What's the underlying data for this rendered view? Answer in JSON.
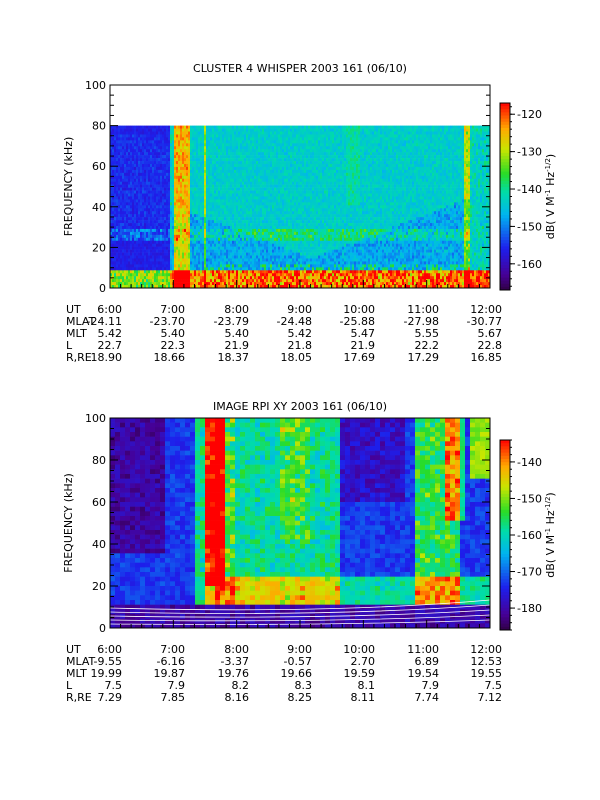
{
  "chart_data": [
    {
      "type": "heatmap",
      "title": "CLUSTER 4 WHISPER 2003 161 (06/10)",
      "ylabel": "FREQUENCY (kHz)",
      "ylim": [
        0,
        100
      ],
      "y_ticks": [
        "0",
        "20",
        "40",
        "60",
        "80",
        "100"
      ],
      "x_ticks": [
        "6:00",
        "7:00",
        "8:00",
        "9:00",
        "10:00",
        "11:00",
        "12:00"
      ],
      "data_freq_max": 80,
      "colorbar": {
        "label": "dB( V M",
        "label_sup": "-1",
        "label_mid": "Hz",
        "label_sup2": "-1/2",
        "label_end": ")",
        "range": [
          -167,
          -117
        ],
        "ticks": [
          "-120",
          "-130",
          "-140",
          "-150",
          "-160"
        ]
      },
      "ephemeris": {
        "rows": [
          {
            "name": "UT",
            "values": [
              "6:00",
              "7:00",
              "8:00",
              "9:00",
              "10:00",
              "11:00",
              "12:00"
            ]
          },
          {
            "name": "MLAT",
            "values": [
              "-24.11",
              "-23.70",
              "-23.79",
              "-24.48",
              "-25.88",
              "-27.98",
              "-30.77"
            ]
          },
          {
            "name": "MLT",
            "values": [
              "5.42",
              "5.40",
              "5.40",
              "5.42",
              "5.47",
              "5.55",
              "5.67"
            ]
          },
          {
            "name": "L",
            "values": [
              "22.7",
              "22.3",
              "21.9",
              "21.8",
              "21.9",
              "22.2",
              "22.8"
            ]
          },
          {
            "name": "R,RE",
            "values": [
              "18.90",
              "18.66",
              "18.37",
              "18.05",
              "17.69",
              "17.29",
              "16.85"
            ]
          }
        ]
      }
    },
    {
      "type": "heatmap",
      "title": "IMAGE RPI XY 2003 161 (06/10)",
      "ylabel": "FREQUENCY (kHz)",
      "ylim": [
        0,
        100
      ],
      "y_ticks": [
        "0",
        "20",
        "40",
        "60",
        "80",
        "100"
      ],
      "x_ticks": [
        "6:00",
        "7:00",
        "8:00",
        "9:00",
        "10:00",
        "11:00",
        "12:00"
      ],
      "data_freq_max": 102,
      "colorbar": {
        "label": "dB( V M",
        "label_sup": "-1",
        "label_mid": "Hz",
        "label_sup2": "-1/2",
        "label_end": ")",
        "range": [
          -186,
          -134
        ],
        "ticks": [
          "-140",
          "-150",
          "-160",
          "-170",
          "-180"
        ]
      },
      "ephemeris": {
        "rows": [
          {
            "name": "UT",
            "values": [
              "6:00",
              "7:00",
              "8:00",
              "9:00",
              "10:00",
              "11:00",
              "12:00"
            ]
          },
          {
            "name": "MLAT",
            "values": [
              "-9.55",
              "-6.16",
              "-3.37",
              "-0.57",
              "2.70",
              "6.89",
              "12.53"
            ]
          },
          {
            "name": "MLT",
            "values": [
              "19.99",
              "19.87",
              "19.76",
              "19.66",
              "19.59",
              "19.54",
              "19.55"
            ]
          },
          {
            "name": "L",
            "values": [
              "7.5",
              "7.9",
              "8.2",
              "8.3",
              "8.1",
              "7.9",
              "7.5"
            ]
          },
          {
            "name": "R,RE",
            "values": [
              "7.29",
              "7.85",
              "8.16",
              "8.25",
              "8.11",
              "7.74",
              "7.12"
            ]
          }
        ]
      }
    }
  ]
}
